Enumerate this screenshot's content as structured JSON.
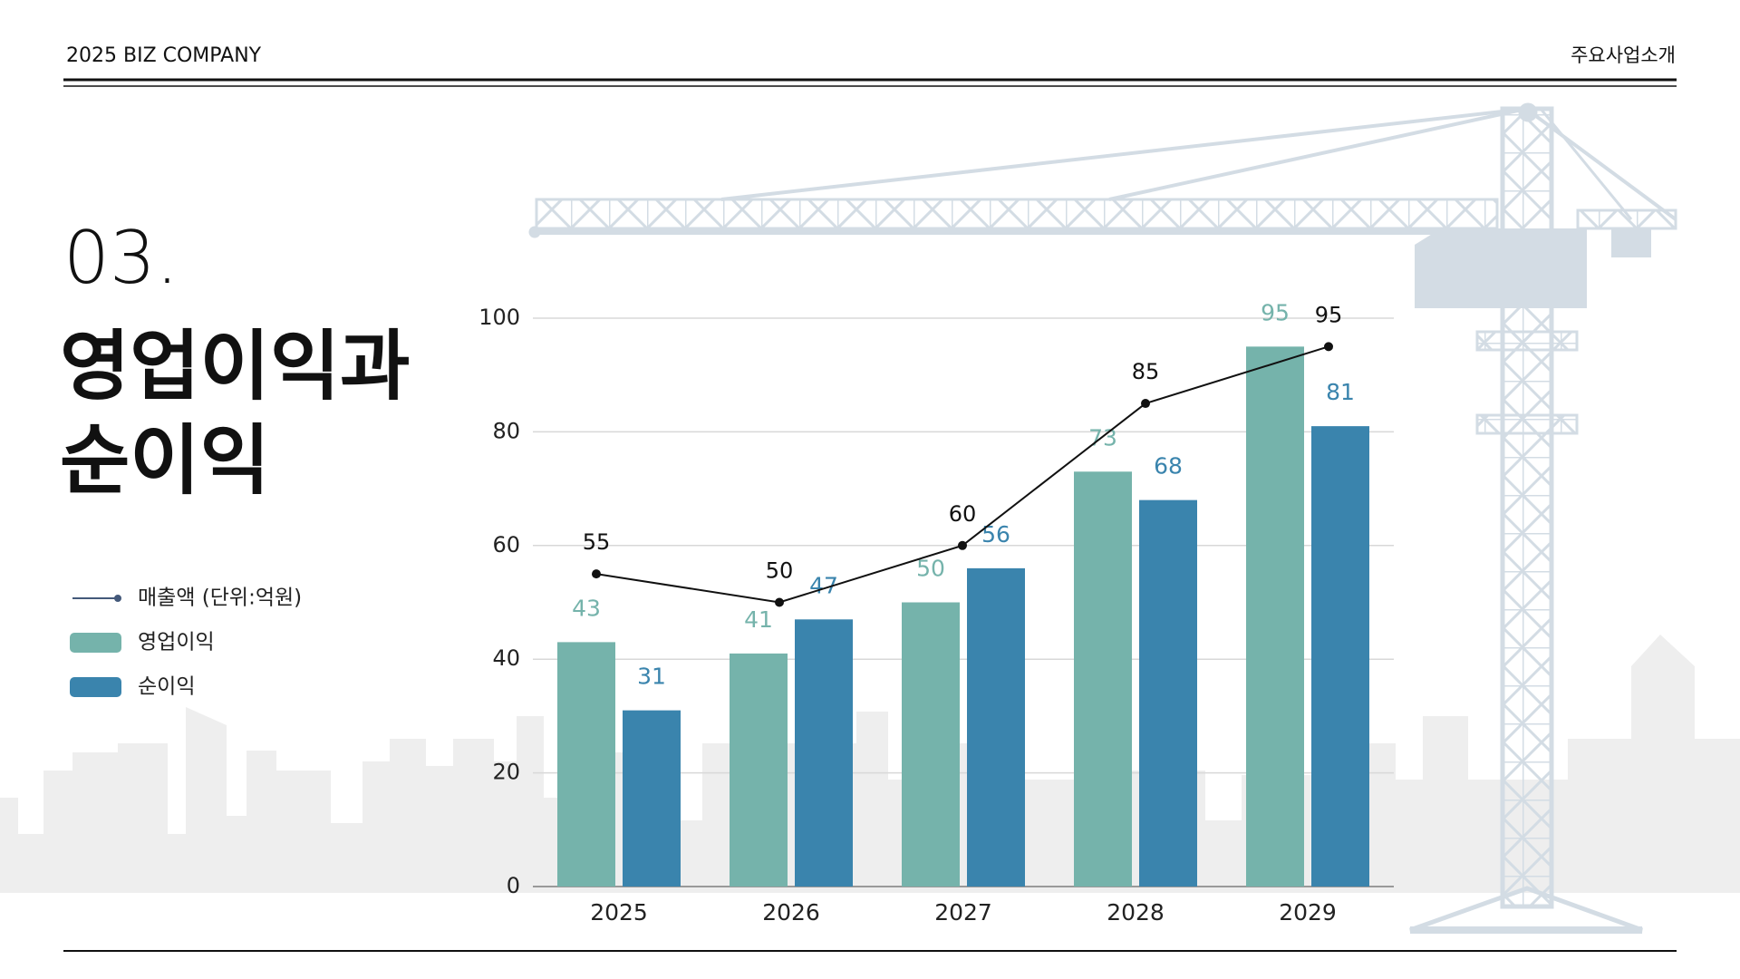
{
  "header": {
    "left": "2025 BIZ COMPANY",
    "right": "주요사업소개"
  },
  "section_number": "03.",
  "title_lines": [
    "영업이익과",
    "순이익"
  ],
  "chart_data": {
    "type": "bar",
    "categories": [
      "2025",
      "2026",
      "2027",
      "2028",
      "2029"
    ],
    "series": [
      {
        "name": "매출액 (단위:억원)",
        "type": "line",
        "color": "#111111",
        "values": [
          55,
          50,
          60,
          85,
          95
        ]
      },
      {
        "name": "영업이익",
        "type": "bar",
        "color": "#75b3ab",
        "values": [
          43,
          41,
          50,
          73,
          95
        ]
      },
      {
        "name": "순이익",
        "type": "bar",
        "color": "#3a84ad",
        "values": [
          31,
          47,
          56,
          68,
          81
        ]
      }
    ],
    "ylim": [
      0,
      100
    ],
    "yticks": [
      0,
      20,
      40,
      60,
      80,
      100
    ],
    "grid": true
  }
}
